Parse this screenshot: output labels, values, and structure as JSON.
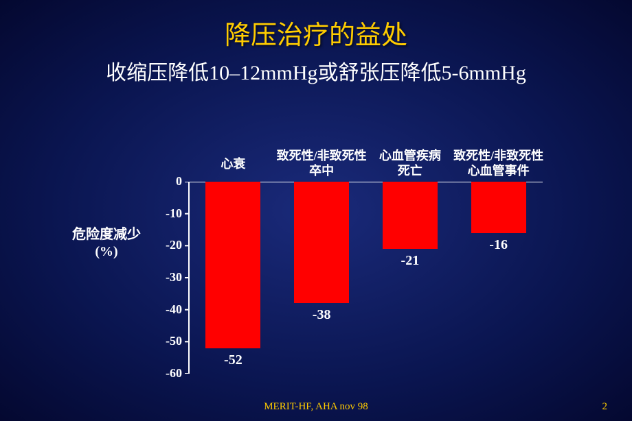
{
  "title": {
    "main": "降压治疗的益处",
    "sub": "收缩压降低10–12mmHg或舒张压降低5-6mmHg",
    "main_color": "#ffcc00",
    "sub_color": "#ffffff",
    "main_fontsize": 38,
    "sub_fontsize": 30
  },
  "chart": {
    "type": "bar",
    "y_axis_label_line1": "危险度减少",
    "y_axis_label_line2": "(%)",
    "ylim_min": -60,
    "ylim_max": 0,
    "ytick_step": 10,
    "y_ticks": [
      0,
      -10,
      -20,
      -30,
      -40,
      -50,
      -60
    ],
    "tick_length": 6,
    "categories": [
      {
        "label_line1": "心衰",
        "label_line2": "",
        "value": -52,
        "color": "#ff0000"
      },
      {
        "label_line1": "致死性/非致死性",
        "label_line2": "卒中",
        "value": -38,
        "color": "#ff0000"
      },
      {
        "label_line1": "心血管疾病",
        "label_line2": "死亡",
        "value": -21,
        "color": "#ff0000"
      },
      {
        "label_line1": "致死性/非致死性",
        "label_line2": "心血管事件",
        "value": -16,
        "color": "#ff0000"
      }
    ],
    "axis_color": "#ffffff",
    "label_color": "#ffffff",
    "background": "transparent",
    "bar_width_ratio": 0.62,
    "axis_stroke_width": 2
  },
  "footer": {
    "source": "MERIT-HF, AHA nov 98",
    "page": "2",
    "color": "#ffcc00",
    "fontsize": 15
  }
}
